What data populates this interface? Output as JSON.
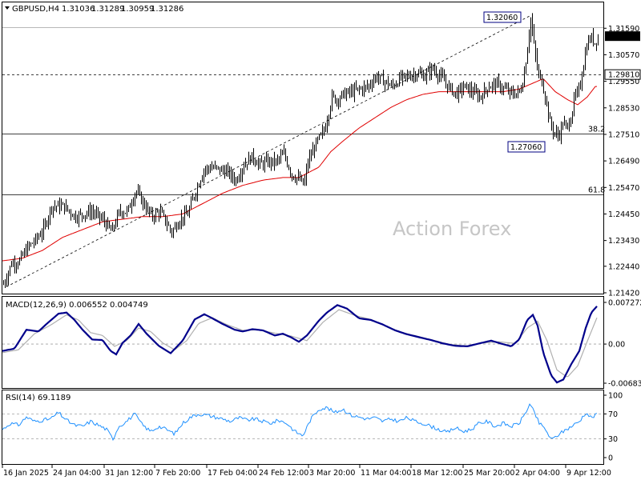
{
  "header": {
    "symbol": "GBPUSD,H4",
    "open": "1.31036",
    "high": "1.31289",
    "low": "1.30959",
    "close": "1.31286"
  },
  "watermark": "Action Forex",
  "chart_data": [
    {
      "type": "candlestick",
      "title": "GBPUSD,H4",
      "ylim": [
        1.2142,
        1.3206
      ],
      "y_ticks": [
        "1.31590",
        "1.30570",
        "1.29550",
        "1.28530",
        "1.27510",
        "1.26490",
        "1.25470",
        "1.24450",
        "1.23430",
        "1.22440",
        "1.21420"
      ],
      "current_price": "1.31286",
      "levels": [
        {
          "label": "1.29810",
          "value": 1.2981,
          "style": "dashed"
        },
        {
          "label": "38.2",
          "value": 1.2755,
          "style": "solid"
        },
        {
          "label": "61.8",
          "value": 1.2521,
          "style": "solid"
        },
        {
          "label": "",
          "value": 1.3162,
          "style": "solid"
        }
      ],
      "annotations": [
        {
          "label": "1.32060",
          "value": 1.3206
        },
        {
          "label": "1.27060",
          "value": 1.2706
        }
      ],
      "x_ticks": [
        "16 Jan 2025",
        "24 Jan 04:00",
        "31 Jan 12:00",
        "7 Feb 20:00",
        "17 Feb 04:00",
        "24 Feb 12:00",
        "3 Mar 20:00",
        "11 Mar 04:00",
        "18 Mar 12:00",
        "25 Mar 20:00",
        "2 Apr 04:00",
        "9 Apr 12:00"
      ],
      "close_anchors": [
        [
          0,
          1.2175
        ],
        [
          10,
          1.2255
        ],
        [
          20,
          1.2265
        ],
        [
          30,
          1.2315
        ],
        [
          40,
          1.2345
        ],
        [
          50,
          1.2385
        ],
        [
          60,
          1.2475
        ],
        [
          75,
          1.2475
        ],
        [
          90,
          1.2435
        ],
        [
          100,
          1.2445
        ],
        [
          110,
          1.2455
        ],
        [
          125,
          1.242
        ],
        [
          135,
          1.2375
        ],
        [
          145,
          1.2455
        ],
        [
          155,
          1.2455
        ],
        [
          165,
          1.2535
        ],
        [
          175,
          1.2485
        ],
        [
          185,
          1.2435
        ],
        [
          195,
          1.2455
        ],
        [
          210,
          1.2375
        ],
        [
          220,
          1.2425
        ],
        [
          230,
          1.2445
        ],
        [
          240,
          1.2535
        ],
        [
          250,
          1.2615
        ],
        [
          260,
          1.2625
        ],
        [
          270,
          1.2615
        ],
        [
          280,
          1.2605
        ],
        [
          290,
          1.2575
        ],
        [
          300,
          1.2635
        ],
        [
          310,
          1.2665
        ],
        [
          320,
          1.2635
        ],
        [
          330,
          1.2645
        ],
        [
          340,
          1.2645
        ],
        [
          350,
          1.2675
        ],
        [
          360,
          1.2595
        ],
        [
          370,
          1.2575
        ],
        [
          375,
          1.2555
        ],
        [
          380,
          1.2645
        ],
        [
          390,
          1.2715
        ],
        [
          400,
          1.2765
        ],
        [
          405,
          1.2825
        ],
        [
          410,
          1.2895
        ],
        [
          415,
          1.2885
        ],
        [
          425,
          1.2905
        ],
        [
          435,
          1.2915
        ],
        [
          445,
          1.2925
        ],
        [
          455,
          1.2935
        ],
        [
          465,
          1.2975
        ],
        [
          475,
          1.2955
        ],
        [
          485,
          1.2935
        ],
        [
          495,
          1.2965
        ],
        [
          505,
          1.2975
        ],
        [
          515,
          1.2985
        ],
        [
          525,
          1.2975
        ],
        [
          535,
          1.3005
        ],
        [
          545,
          1.2975
        ],
        [
          555,
          1.2935
        ],
        [
          565,
          1.2905
        ],
        [
          575,
          1.2935
        ],
        [
          585,
          1.2915
        ],
        [
          595,
          1.2895
        ],
        [
          605,
          1.2935
        ],
        [
          615,
          1.2945
        ],
        [
          625,
          1.2925
        ],
        [
          635,
          1.2905
        ],
        [
          645,
          1.2915
        ],
        [
          650,
          1.2985
        ],
        [
          655,
          1.3115
        ],
        [
          658,
          1.3195
        ],
        [
          662,
          1.3095
        ],
        [
          667,
          1.2985
        ],
        [
          672,
          1.2955
        ],
        [
          677,
          1.2885
        ],
        [
          682,
          1.2795
        ],
        [
          688,
          1.2755
        ],
        [
          693,
          1.2745
        ],
        [
          698,
          1.2795
        ],
        [
          703,
          1.2775
        ],
        [
          708,
          1.2815
        ],
        [
          713,
          1.2895
        ],
        [
          718,
          1.2915
        ],
        [
          723,
          1.3005
        ],
        [
          728,
          1.3095
        ],
        [
          733,
          1.3125
        ],
        [
          738,
          1.3105
        ],
        [
          742,
          1.3125
        ]
      ],
      "ma_anchors": [
        [
          0,
          1.2265
        ],
        [
          25,
          1.2275
        ],
        [
          50,
          1.2305
        ],
        [
          75,
          1.2355
        ],
        [
          100,
          1.2385
        ],
        [
          125,
          1.2415
        ],
        [
          150,
          1.2425
        ],
        [
          175,
          1.2435
        ],
        [
          200,
          1.2435
        ],
        [
          225,
          1.2445
        ],
        [
          250,
          1.2485
        ],
        [
          275,
          1.2525
        ],
        [
          300,
          1.2555
        ],
        [
          325,
          1.2575
        ],
        [
          350,
          1.2585
        ],
        [
          370,
          1.2585
        ],
        [
          395,
          1.2625
        ],
        [
          410,
          1.2685
        ],
        [
          425,
          1.2725
        ],
        [
          445,
          1.2775
        ],
        [
          465,
          1.2815
        ],
        [
          485,
          1.2855
        ],
        [
          505,
          1.2885
        ],
        [
          525,
          1.2905
        ],
        [
          545,
          1.2915
        ],
        [
          565,
          1.2915
        ],
        [
          595,
          1.2915
        ],
        [
          625,
          1.2915
        ],
        [
          645,
          1.2925
        ],
        [
          660,
          1.2945
        ],
        [
          675,
          1.2965
        ],
        [
          690,
          1.2915
        ],
        [
          705,
          1.2885
        ],
        [
          718,
          1.2865
        ],
        [
          730,
          1.2895
        ],
        [
          740,
          1.2935
        ]
      ],
      "channel_line": {
        "from": [
          5,
          1.2165
        ],
        "to": [
          658,
          1.3206
        ]
      }
    },
    {
      "type": "line",
      "title": "MACD(12,26,9) 0.006552 0.004749",
      "series": [
        {
          "name": "MACD",
          "value": "0.006552"
        },
        {
          "name": "Signal",
          "value": "0.004749"
        }
      ],
      "ylim": [
        -0.006832,
        0.007272
      ],
      "y_ticks": [
        "0.007272",
        "0.00",
        "-0.006832"
      ],
      "macd_anchors": [
        [
          0,
          -0.0012
        ],
        [
          15,
          -0.0008
        ],
        [
          30,
          0.0025
        ],
        [
          45,
          0.0022
        ],
        [
          55,
          0.0035
        ],
        [
          70,
          0.0053
        ],
        [
          80,
          0.0055
        ],
        [
          90,
          0.0042
        ],
        [
          100,
          0.0025
        ],
        [
          112,
          0.0008
        ],
        [
          125,
          0.0007
        ],
        [
          135,
          -0.0012
        ],
        [
          142,
          -0.0018
        ],
        [
          150,
          0.0002
        ],
        [
          160,
          0.0015
        ],
        [
          170,
          0.0035
        ],
        [
          180,
          0.0018
        ],
        [
          195,
          -0.0003
        ],
        [
          210,
          -0.0016
        ],
        [
          225,
          0.0006
        ],
        [
          240,
          0.0043
        ],
        [
          252,
          0.0052
        ],
        [
          262,
          0.0045
        ],
        [
          275,
          0.0035
        ],
        [
          290,
          0.0025
        ],
        [
          300,
          0.0022
        ],
        [
          312,
          0.0026
        ],
        [
          325,
          0.0024
        ],
        [
          340,
          0.0015
        ],
        [
          350,
          0.0018
        ],
        [
          360,
          0.0012
        ],
        [
          370,
          0.0004
        ],
        [
          380,
          0.0015
        ],
        [
          395,
          0.0041
        ],
        [
          405,
          0.0055
        ],
        [
          418,
          0.0068
        ],
        [
          430,
          0.0062
        ],
        [
          445,
          0.0045
        ],
        [
          460,
          0.0042
        ],
        [
          475,
          0.0034
        ],
        [
          490,
          0.0024
        ],
        [
          505,
          0.0017
        ],
        [
          520,
          0.0012
        ],
        [
          535,
          0.0007
        ],
        [
          550,
          0.0001
        ],
        [
          565,
          -0.0003
        ],
        [
          580,
          -0.0004
        ],
        [
          595,
          0.0001
        ],
        [
          610,
          0.0006
        ],
        [
          622,
          0.0001
        ],
        [
          635,
          -0.0004
        ],
        [
          645,
          0.0008
        ],
        [
          655,
          0.0042
        ],
        [
          662,
          0.0051
        ],
        [
          668,
          0.0032
        ],
        [
          675,
          -0.0015
        ],
        [
          685,
          -0.0055
        ],
        [
          692,
          -0.0067
        ],
        [
          700,
          -0.0062
        ],
        [
          710,
          -0.0035
        ],
        [
          720,
          -0.0012
        ],
        [
          728,
          0.0028
        ],
        [
          735,
          0.0055
        ],
        [
          742,
          0.0066
        ]
      ],
      "signal_anchors": [
        [
          0,
          -0.0015
        ],
        [
          20,
          -0.001
        ],
        [
          40,
          0.0018
        ],
        [
          60,
          0.0033
        ],
        [
          80,
          0.0051
        ],
        [
          95,
          0.0042
        ],
        [
          110,
          0.002
        ],
        [
          125,
          0.0015
        ],
        [
          140,
          -0.0004
        ],
        [
          155,
          0.0006
        ],
        [
          170,
          0.0028
        ],
        [
          185,
          0.0022
        ],
        [
          200,
          0.0002
        ],
        [
          215,
          -0.001
        ],
        [
          230,
          0.0006
        ],
        [
          245,
          0.0036
        ],
        [
          262,
          0.0046
        ],
        [
          280,
          0.0034
        ],
        [
          300,
          0.0024
        ],
        [
          320,
          0.0025
        ],
        [
          340,
          0.0019
        ],
        [
          360,
          0.0014
        ],
        [
          380,
          0.0006
        ],
        [
          400,
          0.0038
        ],
        [
          420,
          0.006
        ],
        [
          440,
          0.005
        ],
        [
          460,
          0.0043
        ],
        [
          480,
          0.003
        ],
        [
          500,
          0.002
        ],
        [
          520,
          0.0013
        ],
        [
          540,
          0.0006
        ],
        [
          560,
          -0.0001
        ],
        [
          580,
          -0.0003
        ],
        [
          600,
          0.0002
        ],
        [
          620,
          0.0004
        ],
        [
          640,
          0.0001
        ],
        [
          655,
          0.0028
        ],
        [
          668,
          0.004
        ],
        [
          680,
          0.0005
        ],
        [
          692,
          -0.0045
        ],
        [
          705,
          -0.0058
        ],
        [
          718,
          -0.0038
        ],
        [
          730,
          0.0005
        ],
        [
          742,
          0.0046
        ]
      ]
    },
    {
      "type": "line",
      "title": "RSI(14) 69.1189",
      "series": [
        {
          "name": "RSI(14)",
          "value": "69.1189"
        }
      ],
      "ylim": [
        0,
        100
      ],
      "y_ticks": [
        "100",
        "70",
        "30",
        "0"
      ],
      "levels": [
        70,
        30
      ],
      "rsi_anchors": [
        [
          0,
          45
        ],
        [
          10,
          55
        ],
        [
          20,
          52
        ],
        [
          30,
          65
        ],
        [
          40,
          58
        ],
        [
          50,
          60
        ],
        [
          60,
          62
        ],
        [
          70,
          72
        ],
        [
          80,
          60
        ],
        [
          90,
          52
        ],
        [
          100,
          50
        ],
        [
          110,
          58
        ],
        [
          120,
          52
        ],
        [
          130,
          45
        ],
        [
          138,
          30
        ],
        [
          145,
          50
        ],
        [
          155,
          58
        ],
        [
          165,
          70
        ],
        [
          175,
          52
        ],
        [
          185,
          42
        ],
        [
          195,
          50
        ],
        [
          205,
          45
        ],
        [
          215,
          38
        ],
        [
          225,
          55
        ],
        [
          235,
          65
        ],
        [
          245,
          70
        ],
        [
          255,
          68
        ],
        [
          265,
          65
        ],
        [
          275,
          62
        ],
        [
          285,
          58
        ],
        [
          295,
          64
        ],
        [
          305,
          60
        ],
        [
          315,
          62
        ],
        [
          325,
          58
        ],
        [
          335,
          55
        ],
        [
          345,
          60
        ],
        [
          355,
          55
        ],
        [
          365,
          42
        ],
        [
          375,
          35
        ],
        [
          385,
          62
        ],
        [
          395,
          78
        ],
        [
          405,
          80
        ],
        [
          415,
          72
        ],
        [
          425,
          78
        ],
        [
          435,
          68
        ],
        [
          445,
          65
        ],
        [
          455,
          62
        ],
        [
          465,
          64
        ],
        [
          475,
          58
        ],
        [
          485,
          62
        ],
        [
          495,
          58
        ],
        [
          505,
          64
        ],
        [
          515,
          58
        ],
        [
          525,
          55
        ],
        [
          535,
          50
        ],
        [
          545,
          45
        ],
        [
          555,
          40
        ],
        [
          565,
          48
        ],
        [
          575,
          42
        ],
        [
          585,
          45
        ],
        [
          595,
          55
        ],
        [
          605,
          58
        ],
        [
          615,
          50
        ],
        [
          625,
          55
        ],
        [
          635,
          50
        ],
        [
          645,
          55
        ],
        [
          652,
          70
        ],
        [
          658,
          85
        ],
        [
          664,
          72
        ],
        [
          670,
          55
        ],
        [
          678,
          45
        ],
        [
          685,
          28
        ],
        [
          692,
          35
        ],
        [
          700,
          42
        ],
        [
          710,
          50
        ],
        [
          720,
          58
        ],
        [
          728,
          72
        ],
        [
          735,
          64
        ],
        [
          742,
          69
        ]
      ]
    }
  ]
}
